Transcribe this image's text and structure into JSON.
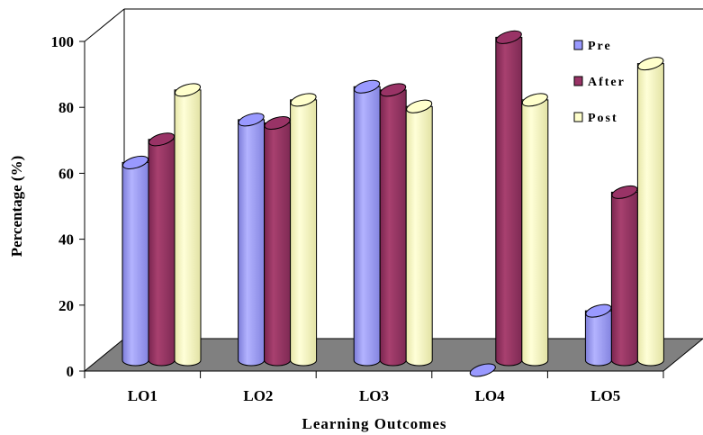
{
  "chart_data": {
    "type": "bar",
    "categories": [
      "LO1",
      "LO2",
      "LO3",
      "LO4",
      "LO5"
    ],
    "series": [
      {
        "name": "Pre",
        "color": "#9999ff",
        "values": [
          63,
          76,
          86,
          0,
          18
        ]
      },
      {
        "name": "After",
        "color": "#993366",
        "values": [
          70,
          75,
          85,
          101,
          54
        ]
      },
      {
        "name": "Post",
        "color": "#ffffcc",
        "values": [
          85,
          82,
          80,
          82,
          93
        ]
      }
    ],
    "xlabel": "Learning Outcomes",
    "ylabel": "Percentage (%)",
    "ylim": [
      0,
      100
    ],
    "yticks": [
      0,
      20,
      40,
      60,
      80,
      100
    ],
    "legend": "top-right",
    "floor_color": "#808080"
  }
}
